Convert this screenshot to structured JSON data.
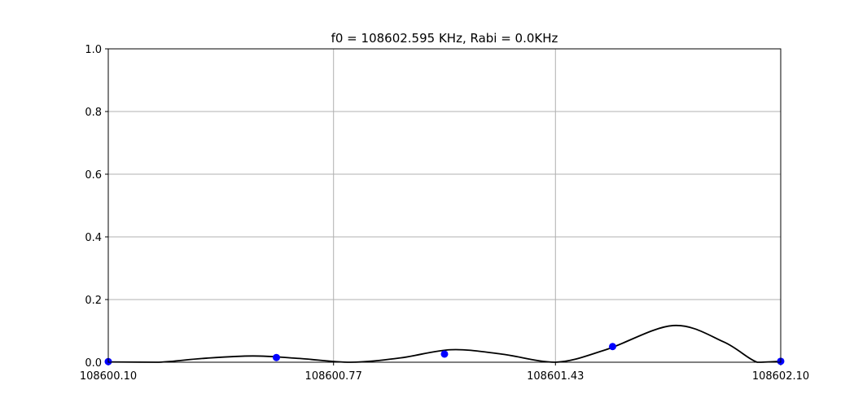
{
  "chart_data": {
    "type": "line",
    "title": "f0 = 108602.595 KHz, Rabi = 0.0KHz",
    "xlabel": "",
    "ylabel": "",
    "xlim": [
      108600.1,
      108602.1
    ],
    "ylim": [
      0,
      1.0
    ],
    "xticks": [
      108600.1,
      108600.77,
      108601.43,
      108602.1
    ],
    "xtick_labels": [
      "108600.10",
      "108600.77",
      "108601.43",
      "108602.10"
    ],
    "yticks": [
      0.0,
      0.2,
      0.4,
      0.6,
      0.8,
      1.0
    ],
    "ytick_labels": [
      "0.0",
      "0.2",
      "0.4",
      "0.6",
      "0.8",
      "1.0"
    ],
    "grid": true,
    "colors": {
      "fit": "#000000",
      "points": "#0000ff",
      "grid": "#b0b0b0"
    },
    "series": [
      {
        "kind": "points",
        "x": [
          108600.1,
          108600.6,
          108601.1,
          108601.6,
          108602.1
        ],
        "y": [
          0.002,
          0.015,
          0.026,
          0.05,
          0.003
        ]
      },
      {
        "kind": "line",
        "x": [
          108600.1,
          108600.25,
          108600.38,
          108600.53,
          108600.67,
          108600.82,
          108600.97,
          108601.12,
          108601.27,
          108601.43,
          108601.58,
          108601.78,
          108601.93,
          108602.03,
          108602.1
        ],
        "y": [
          0.001,
          0.0,
          0.012,
          0.02,
          0.012,
          0.0,
          0.014,
          0.04,
          0.026,
          0.0,
          0.04,
          0.117,
          0.065,
          0.0,
          0.003
        ]
      }
    ]
  }
}
